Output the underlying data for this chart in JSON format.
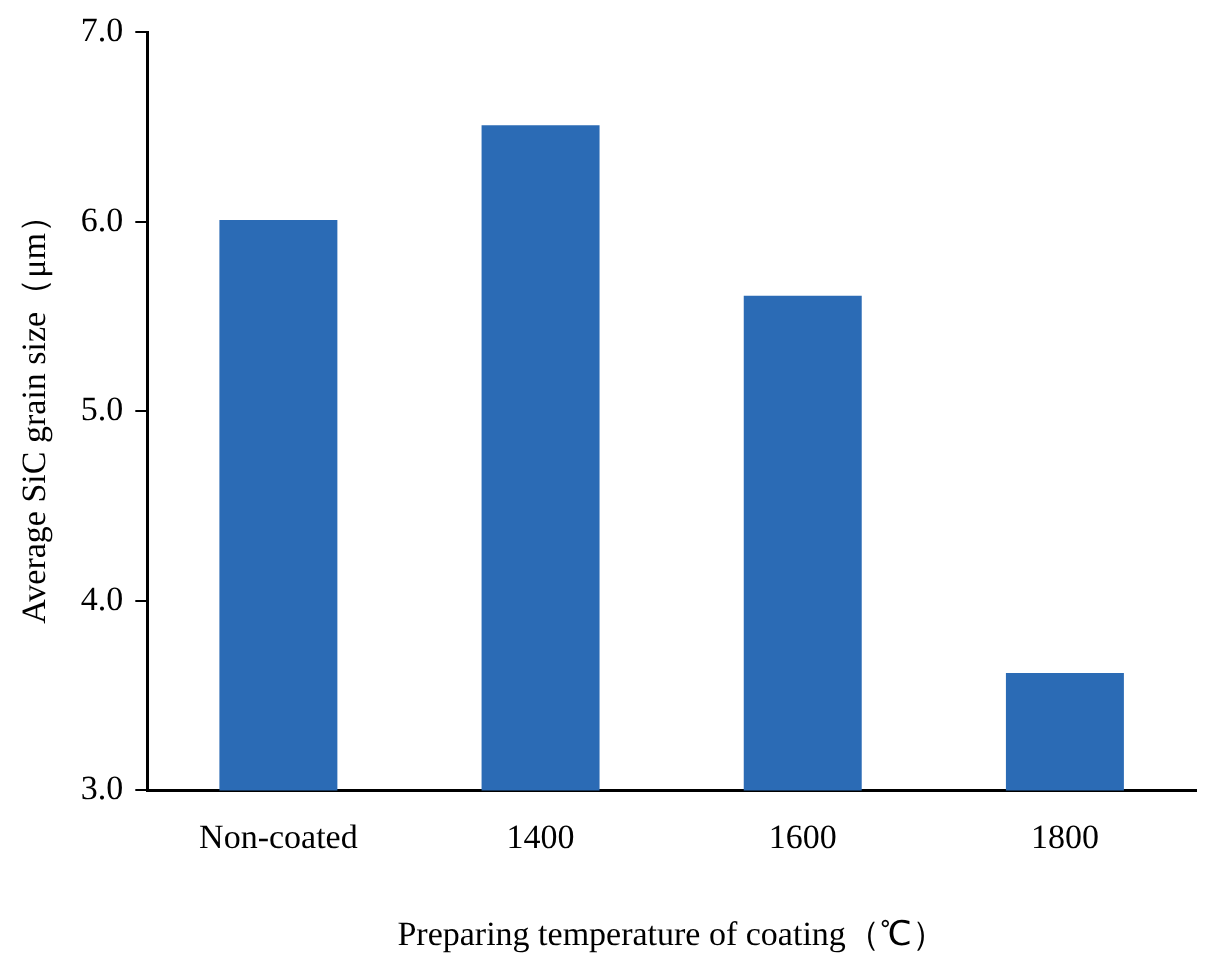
{
  "chart_data": {
    "type": "bar",
    "xlabel": "Preparing temperature of coating（℃）",
    "ylabel": "Average SiC grain size（μm）",
    "categories": [
      "Non-coated",
      "1400",
      "1600",
      "1800"
    ],
    "values": [
      6.01,
      6.51,
      5.61,
      3.62
    ],
    "color": "#2b6bb5",
    "ylim": [
      3,
      7
    ],
    "yticks": [
      {
        "value": 3,
        "label": "3.0"
      },
      {
        "value": 4,
        "label": "4.0"
      },
      {
        "value": 5,
        "label": "5.0"
      },
      {
        "value": 6,
        "label": "6.0"
      },
      {
        "value": 7,
        "label": "7.0"
      }
    ],
    "grid": false,
    "legend": false
  }
}
